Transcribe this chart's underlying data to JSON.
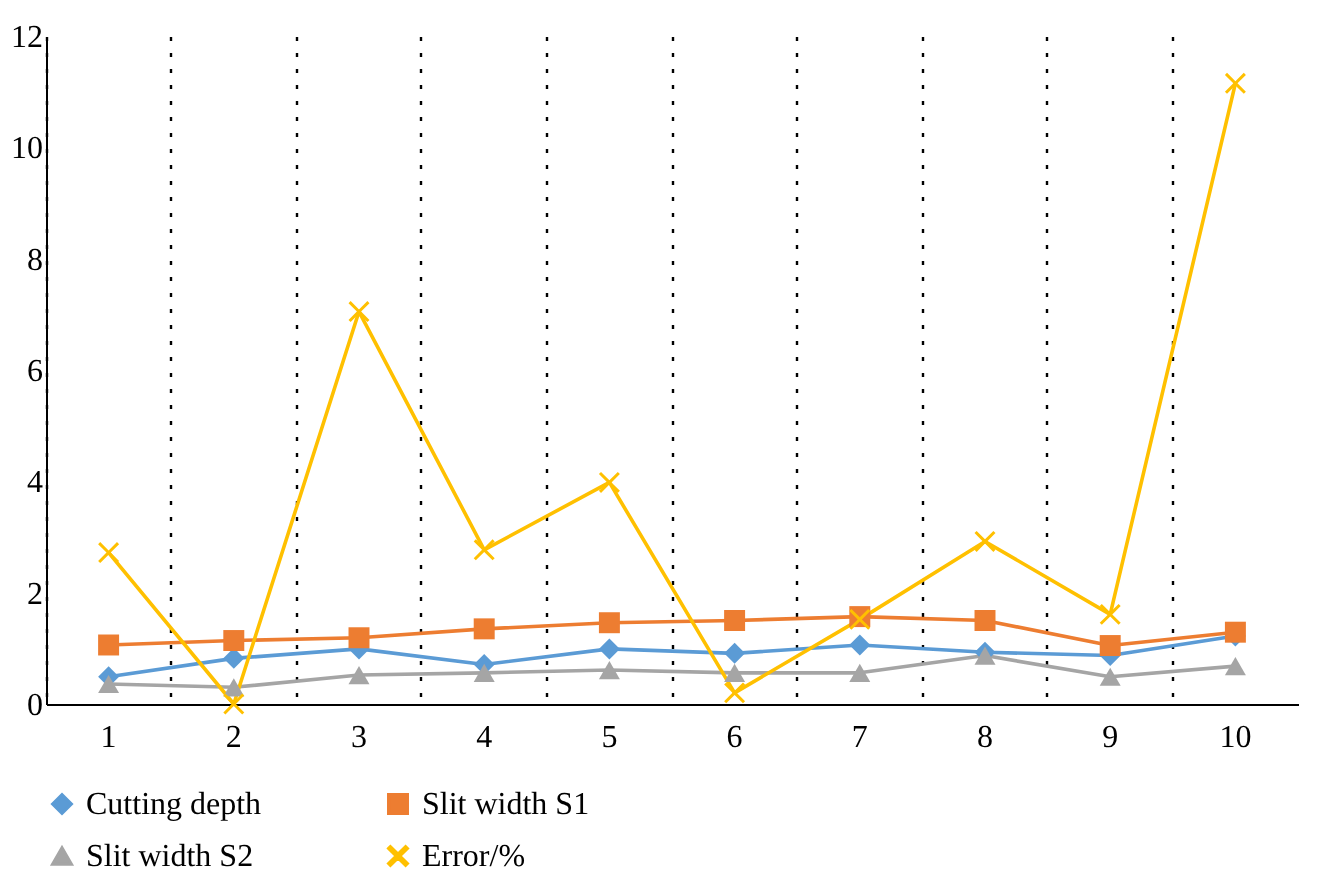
{
  "chart_data": {
    "type": "line",
    "categories": [
      "1",
      "2",
      "3",
      "4",
      "5",
      "6",
      "7",
      "8",
      "9",
      "10"
    ],
    "series": [
      {
        "name": "Cutting depth",
        "color": "#5b9bd5",
        "marker": "diamond",
        "values": [
          0.49,
          0.82,
          0.99,
          0.71,
          0.99,
          0.91,
          1.06,
          0.93,
          0.87,
          1.22
        ]
      },
      {
        "name": "Slit width S1",
        "color": "#ed7d31",
        "marker": "square",
        "values": [
          1.06,
          1.14,
          1.19,
          1.35,
          1.46,
          1.5,
          1.57,
          1.5,
          1.05,
          1.29
        ]
      },
      {
        "name": "Slit width S2",
        "color": "#a5a5a5",
        "marker": "triangle",
        "values": [
          0.36,
          0.3,
          0.52,
          0.56,
          0.61,
          0.56,
          0.56,
          0.87,
          0.49,
          0.68
        ]
      },
      {
        "name": "Error/%",
        "color": "#ffc000",
        "marker": "cross",
        "values": [
          2.72,
          0,
          7.05,
          2.77,
          3.98,
          0.2,
          1.52,
          2.92,
          1.61,
          11.15
        ]
      }
    ],
    "ylim": [
      0,
      12
    ],
    "yticks": [
      0,
      2,
      4,
      6,
      8,
      10,
      12
    ],
    "grid": "x",
    "legend": "bottom",
    "line_style": "solid"
  }
}
